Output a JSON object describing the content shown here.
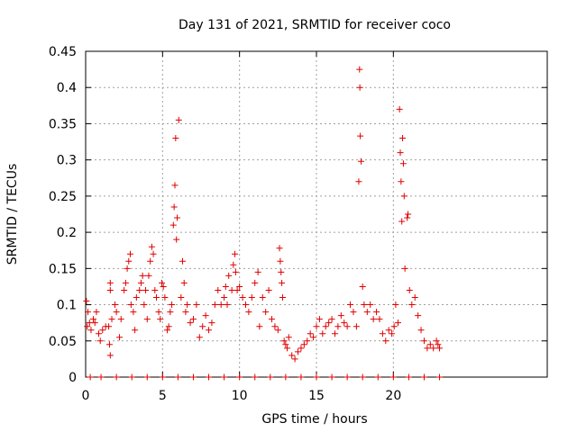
{
  "chart_data": {
    "type": "scatter",
    "title": "Day 131 of 2021, SRMTID for receiver coco",
    "xlabel": "GPS time / hours",
    "ylabel": "SRMTID / TECUs",
    "xlim": [
      0,
      30
    ],
    "ylim": [
      0,
      0.45
    ],
    "xticks": [
      0,
      5,
      10,
      15,
      20
    ],
    "xtick_labels": [
      "0",
      "5",
      "10",
      "15",
      "20"
    ],
    "yticks": [
      0,
      0.05,
      0.1,
      0.15,
      0.2,
      0.25,
      0.3,
      0.35,
      0.4,
      0.45
    ],
    "ytick_labels": [
      "0",
      "0.05",
      "0.1",
      "0.15",
      "0.2",
      "0.25",
      "0.3",
      "0.35",
      "0.4",
      "0.45"
    ],
    "grid": true,
    "marker": "plus",
    "color": "#e00000",
    "series": [
      {
        "name": "SRMTID",
        "points": [
          [
            0.05,
            0.105
          ],
          [
            0.1,
            0.07
          ],
          [
            0.15,
            0.09
          ],
          [
            0.25,
            0.075
          ],
          [
            0.35,
            0.065
          ],
          [
            0.5,
            0.08
          ],
          [
            0.6,
            0.075
          ],
          [
            0.7,
            0.09
          ],
          [
            0.85,
            0.06
          ],
          [
            0.95,
            0.05
          ],
          [
            1.1,
            0.065
          ],
          [
            1.3,
            0.07
          ],
          [
            1.5,
            0.07
          ],
          [
            1.7,
            0.08
          ],
          [
            1.55,
            0.045
          ],
          [
            1.6,
            0.03
          ],
          [
            1.9,
            0.1
          ],
          [
            2.0,
            0.09
          ],
          [
            2.2,
            0.055
          ],
          [
            2.3,
            0.08
          ],
          [
            1.6,
            0.13
          ],
          [
            1.6,
            0.12
          ],
          [
            2.5,
            0.12
          ],
          [
            2.6,
            0.13
          ],
          [
            2.7,
            0.15
          ],
          [
            2.8,
            0.16
          ],
          [
            2.9,
            0.17
          ],
          [
            2.95,
            0.1
          ],
          [
            3.1,
            0.09
          ],
          [
            3.2,
            0.065
          ],
          [
            3.3,
            0.11
          ],
          [
            3.5,
            0.12
          ],
          [
            3.6,
            0.13
          ],
          [
            3.7,
            0.14
          ],
          [
            3.8,
            0.1
          ],
          [
            3.9,
            0.12
          ],
          [
            4.0,
            0.08
          ],
          [
            4.1,
            0.14
          ],
          [
            4.2,
            0.16
          ],
          [
            4.3,
            0.18
          ],
          [
            4.4,
            0.17
          ],
          [
            4.5,
            0.12
          ],
          [
            4.6,
            0.11
          ],
          [
            4.75,
            0.09
          ],
          [
            4.85,
            0.08
          ],
          [
            4.95,
            0.13
          ],
          [
            5.05,
            0.125
          ],
          [
            5.15,
            0.11
          ],
          [
            5.3,
            0.065
          ],
          [
            5.4,
            0.07
          ],
          [
            5.5,
            0.09
          ],
          [
            5.6,
            0.1
          ],
          [
            5.7,
            0.21
          ],
          [
            5.75,
            0.235
          ],
          [
            5.8,
            0.265
          ],
          [
            5.85,
            0.33
          ],
          [
            5.9,
            0.19
          ],
          [
            5.95,
            0.22
          ],
          [
            6.05,
            0.355
          ],
          [
            6.2,
            0.11
          ],
          [
            6.3,
            0.16
          ],
          [
            6.4,
            0.13
          ],
          [
            6.5,
            0.09
          ],
          [
            6.6,
            0.1
          ],
          [
            6.8,
            0.075
          ],
          [
            7.0,
            0.08
          ],
          [
            7.2,
            0.1
          ],
          [
            7.4,
            0.055
          ],
          [
            7.6,
            0.07
          ],
          [
            7.8,
            0.085
          ],
          [
            8.0,
            0.065
          ],
          [
            8.2,
            0.075
          ],
          [
            8.4,
            0.1
          ],
          [
            8.6,
            0.12
          ],
          [
            8.8,
            0.1
          ],
          [
            9.0,
            0.11
          ],
          [
            9.1,
            0.125
          ],
          [
            9.2,
            0.1
          ],
          [
            9.3,
            0.14
          ],
          [
            9.5,
            0.12
          ],
          [
            9.6,
            0.155
          ],
          [
            9.7,
            0.17
          ],
          [
            9.75,
            0.145
          ],
          [
            9.85,
            0.12
          ],
          [
            10.0,
            0.125
          ],
          [
            10.2,
            0.11
          ],
          [
            10.4,
            0.1
          ],
          [
            10.6,
            0.09
          ],
          [
            10.8,
            0.11
          ],
          [
            11.0,
            0.13
          ],
          [
            11.2,
            0.145
          ],
          [
            11.3,
            0.07
          ],
          [
            11.5,
            0.11
          ],
          [
            11.7,
            0.09
          ],
          [
            11.9,
            0.12
          ],
          [
            12.1,
            0.08
          ],
          [
            12.3,
            0.07
          ],
          [
            12.5,
            0.065
          ],
          [
            12.6,
            0.178
          ],
          [
            12.65,
            0.16
          ],
          [
            12.7,
            0.145
          ],
          [
            12.75,
            0.13
          ],
          [
            12.8,
            0.11
          ],
          [
            12.9,
            0.05
          ],
          [
            13.0,
            0.045
          ],
          [
            13.1,
            0.04
          ],
          [
            13.2,
            0.055
          ],
          [
            13.4,
            0.03
          ],
          [
            13.6,
            0.025
          ],
          [
            13.8,
            0.035
          ],
          [
            14.0,
            0.04
          ],
          [
            14.2,
            0.045
          ],
          [
            14.4,
            0.05
          ],
          [
            14.6,
            0.06
          ],
          [
            14.8,
            0.055
          ],
          [
            15.0,
            0.07
          ],
          [
            15.2,
            0.08
          ],
          [
            15.4,
            0.06
          ],
          [
            15.6,
            0.07
          ],
          [
            15.8,
            0.075
          ],
          [
            16.0,
            0.08
          ],
          [
            16.2,
            0.06
          ],
          [
            16.4,
            0.07
          ],
          [
            16.6,
            0.085
          ],
          [
            16.8,
            0.075
          ],
          [
            17.0,
            0.07
          ],
          [
            17.2,
            0.1
          ],
          [
            17.4,
            0.09
          ],
          [
            17.6,
            0.07
          ],
          [
            17.75,
            0.27
          ],
          [
            17.8,
            0.425
          ],
          [
            17.82,
            0.4
          ],
          [
            17.85,
            0.333
          ],
          [
            17.9,
            0.298
          ],
          [
            18.0,
            0.125
          ],
          [
            18.1,
            0.1
          ],
          [
            18.3,
            0.09
          ],
          [
            18.5,
            0.1
          ],
          [
            18.7,
            0.08
          ],
          [
            18.9,
            0.09
          ],
          [
            19.1,
            0.08
          ],
          [
            19.3,
            0.06
          ],
          [
            19.5,
            0.05
          ],
          [
            19.7,
            0.065
          ],
          [
            19.9,
            0.06
          ],
          [
            20.05,
            0.07
          ],
          [
            20.15,
            0.1
          ],
          [
            20.3,
            0.075
          ],
          [
            20.4,
            0.37
          ],
          [
            20.45,
            0.31
          ],
          [
            20.5,
            0.27
          ],
          [
            20.55,
            0.215
          ],
          [
            20.6,
            0.33
          ],
          [
            20.65,
            0.295
          ],
          [
            20.7,
            0.25
          ],
          [
            20.75,
            0.15
          ],
          [
            20.9,
            0.22
          ],
          [
            20.95,
            0.225
          ],
          [
            21.05,
            0.12
          ],
          [
            21.2,
            0.1
          ],
          [
            21.4,
            0.11
          ],
          [
            21.6,
            0.085
          ],
          [
            21.8,
            0.065
          ],
          [
            22.0,
            0.05
          ],
          [
            22.2,
            0.04
          ],
          [
            22.4,
            0.045
          ],
          [
            22.6,
            0.04
          ],
          [
            22.8,
            0.05
          ],
          [
            22.9,
            0.045
          ],
          [
            23.0,
            0.04
          ],
          [
            0.3,
            0.0
          ],
          [
            1.0,
            0.0
          ],
          [
            2.0,
            0.0
          ],
          [
            3.0,
            0.0
          ],
          [
            4.0,
            0.0
          ],
          [
            5.0,
            0.0
          ],
          [
            6.0,
            0.0
          ],
          [
            7.0,
            0.0
          ],
          [
            8.0,
            0.0
          ],
          [
            9.0,
            0.0
          ],
          [
            10.0,
            0.0
          ],
          [
            11.0,
            0.0
          ],
          [
            12.0,
            0.0
          ],
          [
            13.0,
            0.0
          ],
          [
            14.0,
            0.0
          ],
          [
            15.0,
            0.0
          ],
          [
            16.0,
            0.0
          ],
          [
            17.0,
            0.0
          ],
          [
            18.0,
            0.0
          ],
          [
            19.0,
            0.0
          ],
          [
            20.0,
            0.0
          ],
          [
            21.0,
            0.0
          ],
          [
            22.0,
            0.0
          ],
          [
            23.0,
            0.0
          ]
        ]
      }
    ]
  }
}
